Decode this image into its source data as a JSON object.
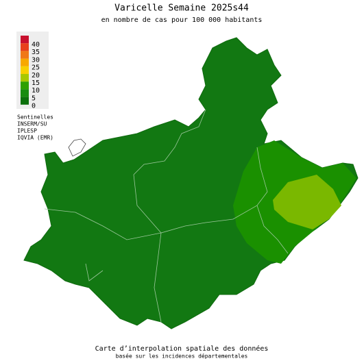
{
  "header": {
    "title": "Varicelle Semaine 2025s44",
    "subtitle": "en nombre de cas pour 100 000 habitants"
  },
  "legend": {
    "items": [
      {
        "label": 40,
        "color": "#c8102e"
      },
      {
        "label": 35,
        "color": "#e8401c"
      },
      {
        "label": 30,
        "color": "#f07818"
      },
      {
        "label": 25,
        "color": "#f8a800"
      },
      {
        "label": 20,
        "color": "#f8d000"
      },
      {
        "label": 15,
        "color": "#a8c800"
      },
      {
        "label": 10,
        "color": "#2ea000"
      },
      {
        "label": 5,
        "color": "#188c10"
      },
      {
        "label": 0,
        "color": "#0c700c"
      }
    ]
  },
  "sources": [
    "Sentinelles",
    "INSERM/SU",
    "IPLESP",
    "IQVIA (EMR)"
  ],
  "footer": {
    "title": "Carte d’interpolation spatiale des données",
    "subtitle": "basée sur les incidences départementales"
  }
}
